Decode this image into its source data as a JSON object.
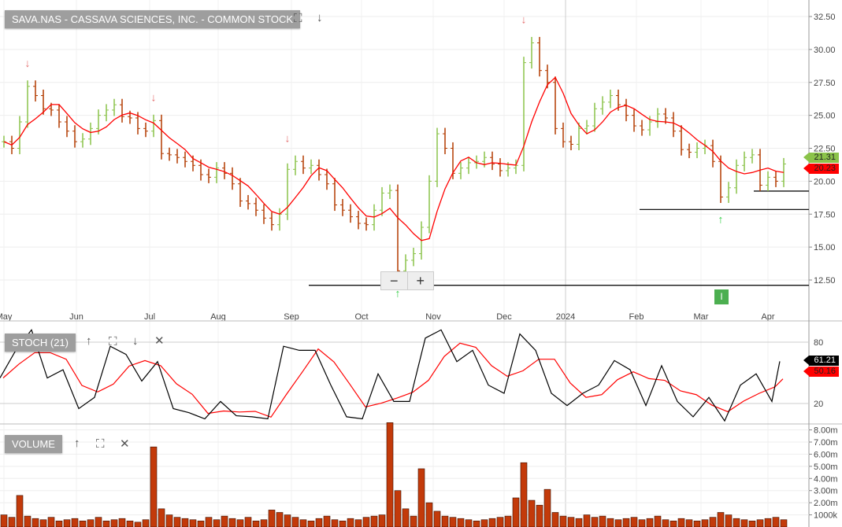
{
  "header": {
    "title": "SAVA.NAS - CASSAVA SCIENCES, INC. - COMMON STOCK",
    "icons": [
      "fullscreen-icon",
      "arrow-down-icon"
    ]
  },
  "stoch_panel": {
    "title": "STOCH (21)",
    "icons": [
      "arrow-up-icon",
      "fullscreen-icon",
      "arrow-down-icon",
      "close-icon"
    ]
  },
  "volume_panel": {
    "title": "VOLUME",
    "icons": [
      "arrow-up-icon",
      "fullscreen-icon",
      "close-icon"
    ]
  },
  "colors": {
    "up": "#8bc34a",
    "down": "#b23b00",
    "ma": "#ff0000",
    "stochK": "#000000",
    "stochD": "#ff0000",
    "volume": "#c33a0a"
  },
  "badge": "I",
  "chart_data": [
    {
      "type": "bar",
      "title": "SAVA.NAS - CASSAVA SCIENCES, INC. - COMMON STOCK",
      "ylim": [
        11.5,
        33
      ],
      "y_ticks": [
        "32.50",
        "30.00",
        "27.50",
        "25.00",
        "22.50",
        "20.00",
        "17.50",
        "15.00",
        "12.50"
      ],
      "x_ticks": [
        "May",
        "Jun",
        "Jul",
        "Aug",
        "Sep",
        "Oct",
        "Nov",
        "Dec",
        "2024",
        "Feb",
        "Mar",
        "Apr"
      ],
      "close": [
        23.0,
        22.5,
        24.5,
        27.2,
        26.5,
        25.5,
        25.4,
        24.5,
        23.8,
        23.0,
        23.2,
        24.0,
        25.0,
        25.4,
        25.8,
        24.9,
        24.8,
        24.0,
        23.8,
        24.6,
        22.1,
        22.0,
        21.8,
        21.5,
        21.2,
        20.5,
        20.3,
        21.0,
        20.6,
        19.8,
        18.5,
        18.3,
        17.8,
        17.2,
        16.7,
        17.5,
        20.9,
        21.5,
        21.0,
        21.2,
        20.5,
        19.8,
        18.2,
        17.8,
        17.3,
        16.8,
        16.7,
        17.8,
        19.1,
        19.3,
        13.2,
        14.0,
        14.5,
        16.5,
        20.0,
        23.6,
        22.5,
        20.6,
        21.0,
        21.4,
        21.5,
        21.8,
        21.3,
        20.8,
        21.0,
        21.2,
        29.0,
        30.5,
        28.4,
        27.5,
        24.0,
        23.0,
        22.8,
        24.0,
        24.2,
        25.5,
        26.0,
        26.5,
        25.8,
        25.0,
        24.2,
        23.9,
        24.5,
        25.1,
        24.8,
        23.8,
        22.4,
        22.2,
        22.5,
        22.7,
        21.5,
        18.8,
        19.5,
        21.2,
        21.8,
        22.0,
        19.7,
        20.3,
        20.0,
        21.31
      ],
      "last_price": "21.31",
      "last_ma": "20.23",
      "horizontal_levels": [
        12.1,
        17.85,
        19.25
      ],
      "signals_down_bar": [
        3,
        19,
        36,
        66
      ],
      "signals_up_bar": [
        50,
        91
      ]
    },
    {
      "type": "line",
      "title": "STOCH (21)",
      "ylim": [
        0,
        100
      ],
      "y_ticks": [
        "80",
        "20"
      ],
      "k": [
        45,
        72,
        92,
        45,
        53,
        15,
        26,
        76,
        68,
        42,
        61,
        15,
        11,
        5,
        22,
        8,
        7,
        5,
        76,
        72,
        72,
        38,
        7,
        5,
        49,
        22,
        22,
        84,
        92,
        61,
        72,
        38,
        30,
        88,
        72,
        30,
        18,
        30,
        38,
        62,
        53,
        18,
        57,
        22,
        7,
        26,
        3,
        38,
        49,
        22,
        61.21
      ],
      "last_k": "61.21",
      "last_d": "50.16"
    },
    {
      "type": "bar",
      "title": "VOLUME",
      "y_ticks": [
        "8.00m",
        "7.00m",
        "6.00m",
        "5.00m",
        "4.00m",
        "3.00m",
        "2.00m",
        "1000k"
      ],
      "ylim": [
        0,
        8.6
      ],
      "values_millions": [
        1.0,
        0.8,
        2.6,
        0.9,
        0.7,
        0.6,
        0.8,
        0.5,
        0.6,
        0.7,
        0.5,
        0.6,
        0.8,
        0.5,
        0.6,
        0.7,
        0.5,
        0.4,
        0.6,
        6.6,
        1.5,
        1.0,
        0.8,
        0.7,
        0.6,
        0.5,
        0.8,
        0.6,
        0.9,
        0.7,
        0.6,
        0.8,
        0.5,
        0.6,
        1.4,
        1.2,
        1.0,
        0.8,
        0.6,
        0.5,
        0.7,
        0.9,
        0.6,
        0.5,
        0.7,
        0.6,
        0.8,
        0.9,
        1.0,
        8.6,
        3.0,
        1.5,
        0.9,
        4.8,
        2.0,
        1.3,
        0.9,
        0.8,
        0.7,
        0.6,
        0.5,
        0.6,
        0.7,
        0.8,
        0.9,
        2.4,
        5.3,
        2.2,
        1.8,
        3.1,
        1.2,
        0.9,
        0.8,
        0.7,
        1.0,
        0.8,
        0.9,
        0.7,
        0.6,
        0.7,
        0.8,
        0.6,
        0.7,
        0.9,
        0.6,
        0.5,
        0.7,
        0.6,
        0.5,
        0.6,
        0.8,
        1.2,
        1.0,
        0.7,
        0.6,
        0.5,
        0.6,
        0.7,
        0.8,
        0.6
      ]
    }
  ]
}
